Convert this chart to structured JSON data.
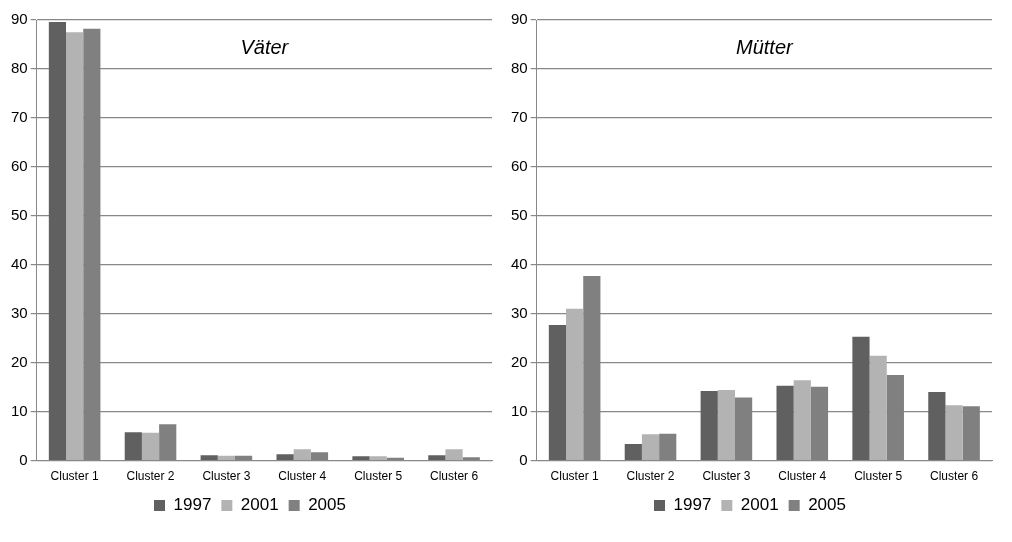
{
  "chart_data": [
    {
      "type": "bar",
      "title": "Väter",
      "categories": [
        "Cluster 1",
        "Cluster 2",
        "Cluster 3",
        "Cluster 4",
        "Cluster 5",
        "Cluster 6"
      ],
      "series": [
        {
          "name": "1997",
          "color": "#606060",
          "values": [
            89.6,
            5.8,
            1.1,
            1.3,
            0.9,
            1.1
          ]
        },
        {
          "name": "2001",
          "color": "#b3b3b3",
          "values": [
            87.5,
            5.7,
            1.0,
            2.3,
            0.9,
            2.3
          ]
        },
        {
          "name": "2005",
          "color": "#808080",
          "values": [
            88.2,
            7.4,
            1.0,
            1.7,
            0.6,
            0.7
          ]
        }
      ],
      "ylim": [
        0,
        90
      ],
      "yticks": [
        0,
        10,
        20,
        30,
        40,
        50,
        60,
        70,
        80,
        90
      ],
      "grid": "y",
      "legend": "bottom"
    },
    {
      "type": "bar",
      "title": "Mütter",
      "categories": [
        "Cluster 1",
        "Cluster 2",
        "Cluster 3",
        "Cluster 4",
        "Cluster 5",
        "Cluster 6"
      ],
      "series": [
        {
          "name": "1997",
          "color": "#606060",
          "values": [
            27.7,
            3.4,
            14.2,
            15.3,
            25.3,
            14.0
          ]
        },
        {
          "name": "2001",
          "color": "#b3b3b3",
          "values": [
            31.0,
            5.4,
            14.4,
            16.4,
            21.4,
            11.3
          ]
        },
        {
          "name": "2005",
          "color": "#808080",
          "values": [
            37.7,
            5.5,
            12.9,
            15.1,
            17.5,
            11.1
          ]
        }
      ],
      "ylim": [
        0,
        90
      ],
      "yticks": [
        0,
        10,
        20,
        30,
        40,
        50,
        60,
        70,
        80,
        90
      ],
      "grid": "y",
      "legend": "bottom"
    }
  ]
}
